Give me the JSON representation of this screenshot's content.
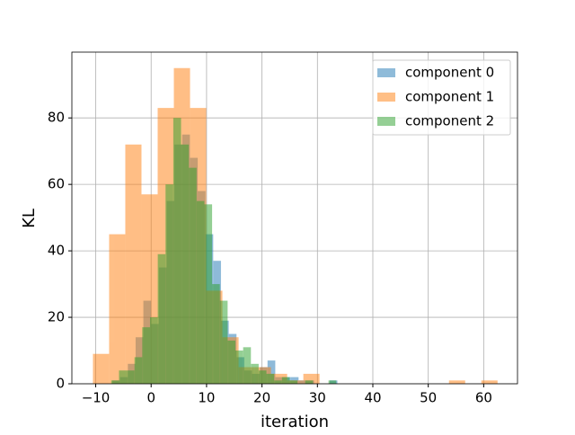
{
  "chart_data": {
    "type": "histogram",
    "xlabel": "iteration",
    "ylabel": "KL",
    "xlim": [
      -14.3,
      66.1
    ],
    "ylim": [
      0,
      99.8
    ],
    "xticks": [
      {
        "value": -10,
        "label": "−10"
      },
      0,
      10,
      20,
      30,
      40,
      50,
      60
    ],
    "yticks": [
      0,
      20,
      40,
      60,
      80
    ],
    "grid": true,
    "legend": "upper right",
    "alpha": 0.5,
    "series": [
      {
        "name": "component 0",
        "color": "#1f77b4",
        "bins": [
          -7,
          -5.6,
          -4.2,
          -2.8,
          -1.4,
          0,
          1.4,
          2.8,
          4.2,
          5.6,
          7,
          8.4,
          9.8,
          11.2,
          12.6,
          14,
          15.4,
          16.8,
          18.2,
          19.6,
          21,
          22.4,
          23.8,
          25.2,
          26.6,
          28,
          29.4,
          30.8,
          32.2,
          33.6
        ],
        "values": [
          1,
          2,
          6,
          14,
          25,
          18,
          35,
          55,
          72,
          75,
          68,
          58,
          45,
          37,
          19,
          15,
          8,
          4,
          3,
          5,
          7,
          2,
          2,
          2,
          1,
          1,
          0,
          0,
          1
        ]
      },
      {
        "name": "component 1",
        "color": "#ff7f0e",
        "bins": [
          -10.5,
          -7.58,
          -4.66,
          -1.74,
          1.18,
          4.1,
          7.02,
          9.94,
          12.86,
          15.78,
          18.7,
          21.62,
          24.54,
          27.46,
          30.38,
          33.3,
          36.22,
          39.14,
          42.06,
          44.98,
          47.9,
          50.82,
          53.74,
          56.66,
          59.58,
          62.5
        ],
        "values": [
          9,
          45,
          72,
          57,
          83,
          95,
          83,
          28,
          14,
          5,
          5,
          3,
          1,
          3,
          0,
          0,
          0,
          0,
          0,
          0,
          0,
          0,
          1,
          0,
          1
        ]
      },
      {
        "name": "component 2",
        "color": "#2ca02c",
        "bins": [
          -7.2,
          -5.8,
          -4.4,
          -3,
          -1.6,
          -0.2,
          1.2,
          2.6,
          4,
          5.4,
          6.8,
          8.2,
          9.6,
          11,
          12.4,
          13.8,
          15.2,
          16.6,
          18,
          19.4,
          20.8,
          22.2,
          23.6,
          25,
          26.4,
          27.8,
          29.2,
          30.6,
          32,
          33.4
        ],
        "values": [
          1,
          4,
          4,
          8,
          17,
          20,
          39,
          60,
          80,
          72,
          65,
          55,
          54,
          30,
          25,
          13,
          10,
          11,
          6,
          4,
          3,
          1,
          2,
          1,
          0,
          1,
          0,
          0,
          1
        ]
      }
    ]
  }
}
